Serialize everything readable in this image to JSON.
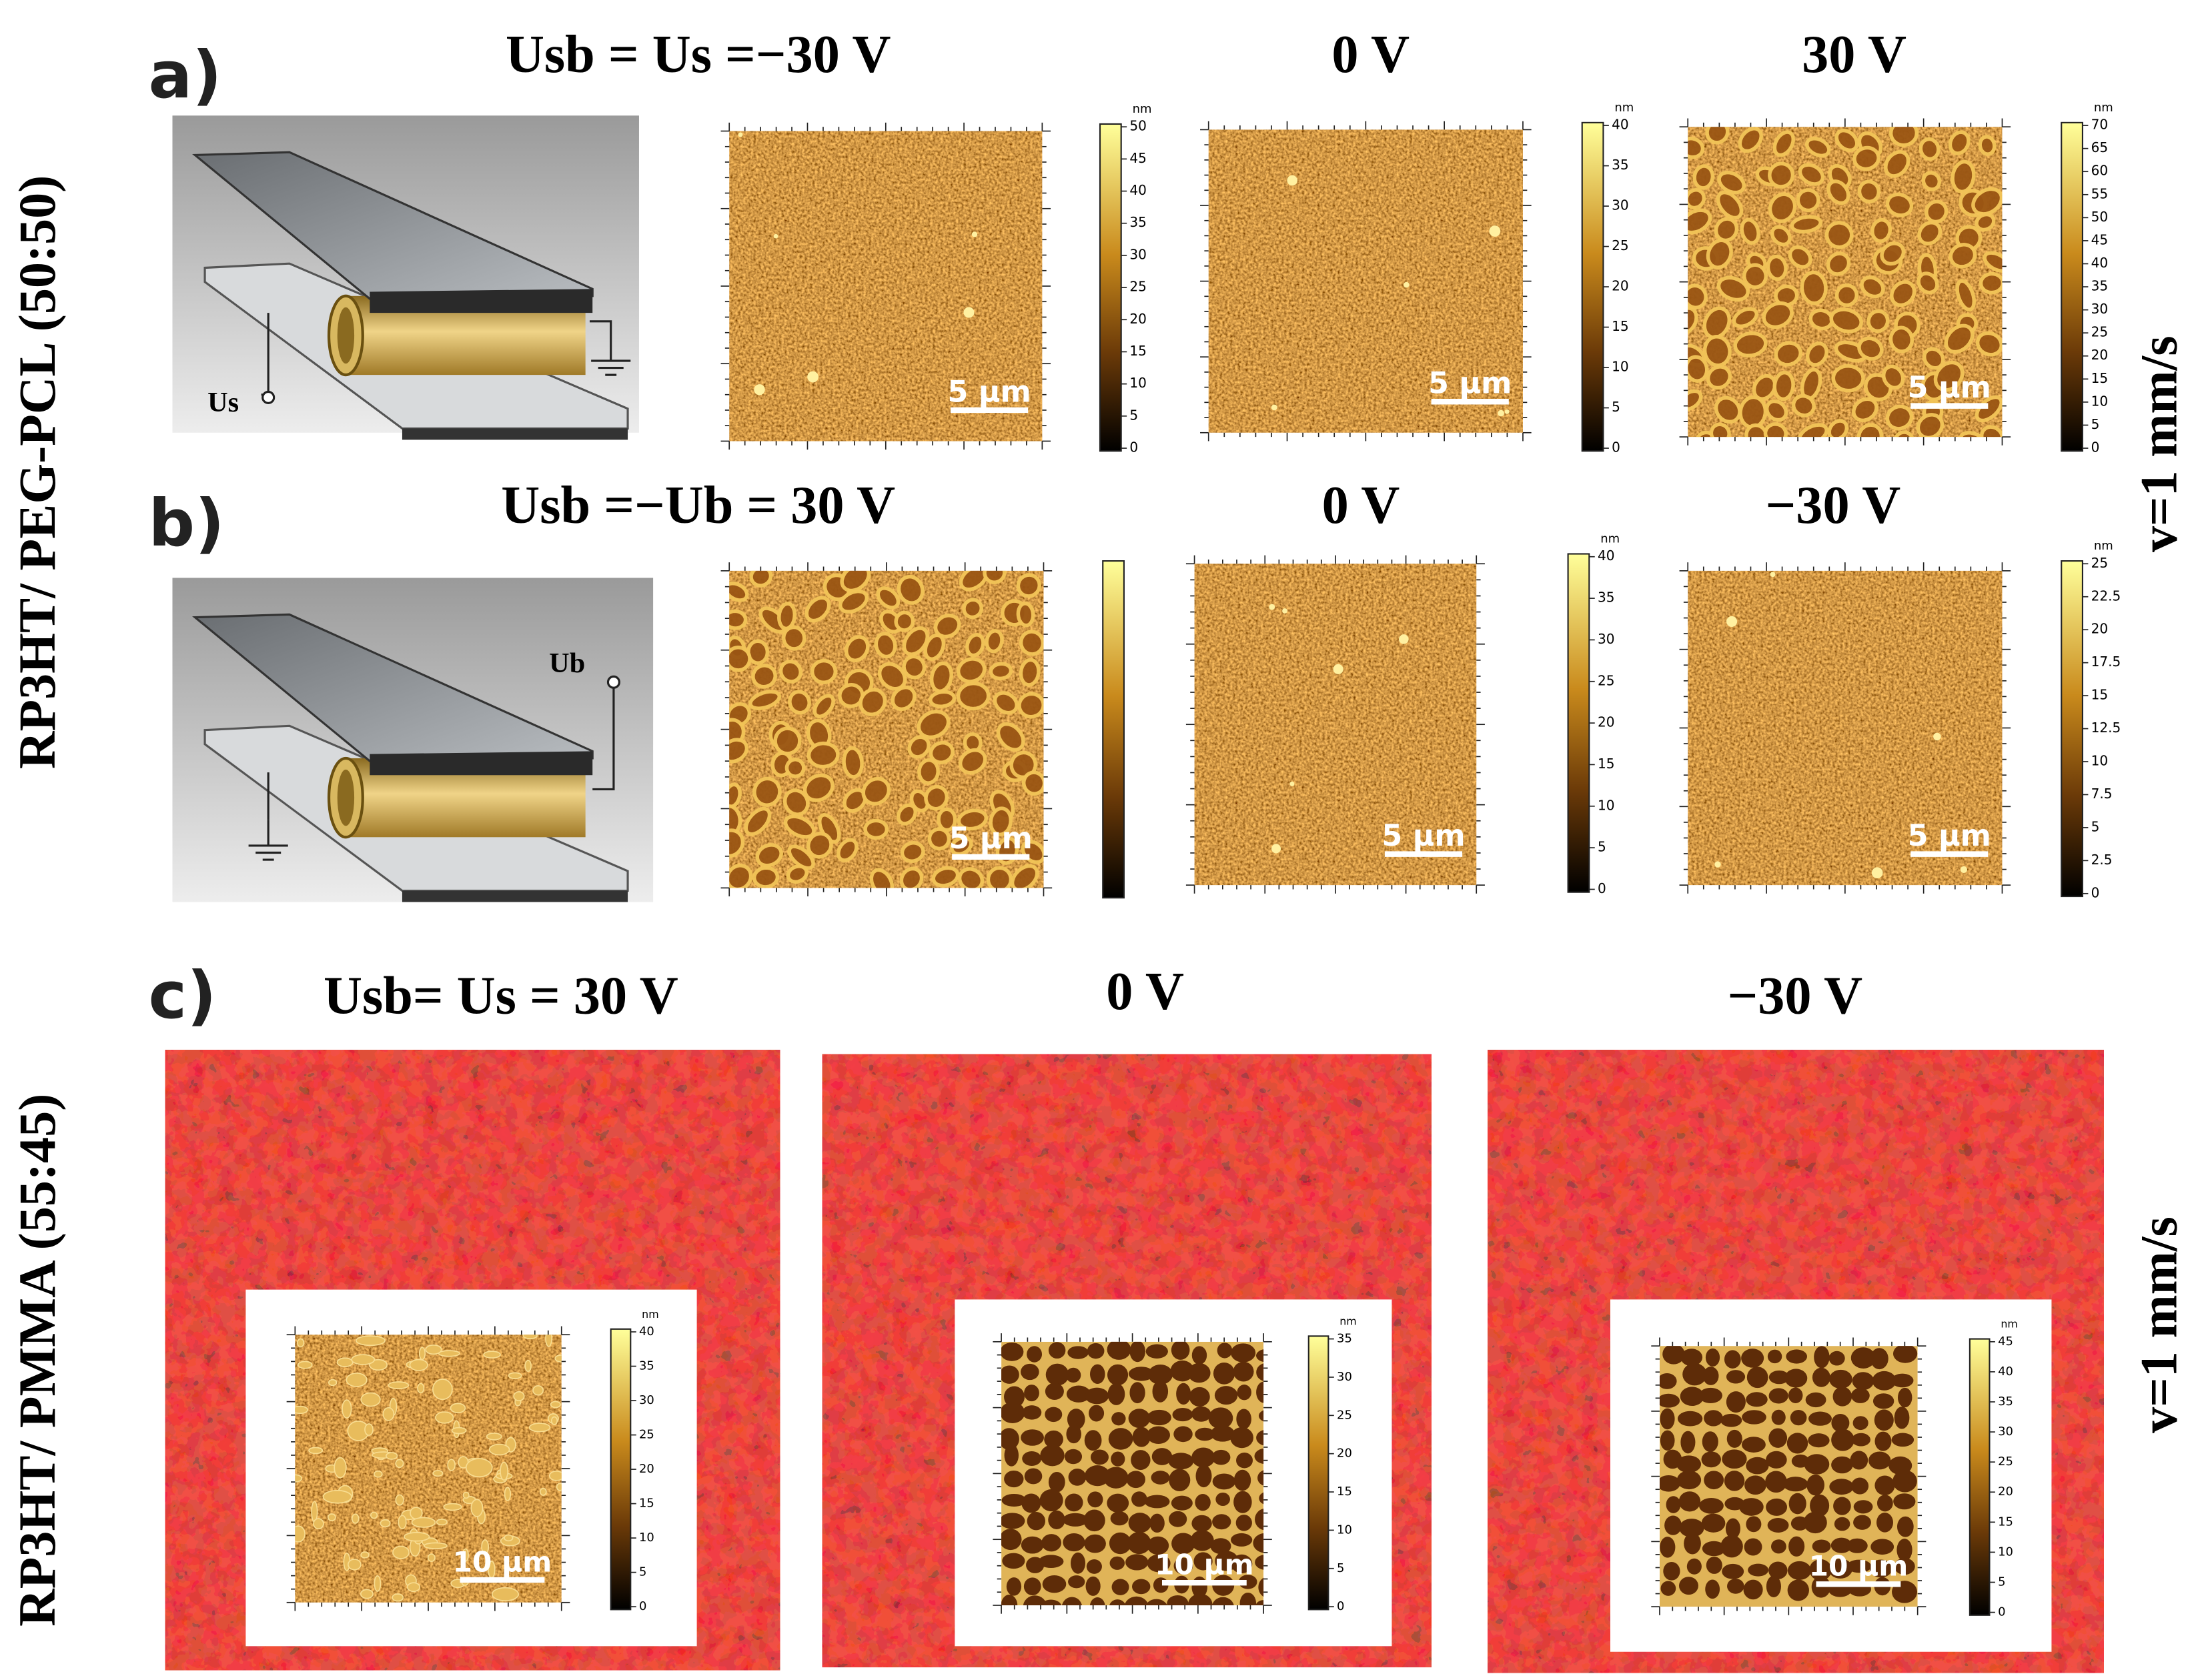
{
  "side_labels": [
    "RP3HT/ PEG-PCL (50:50)",
    "RP3HT/ PMMA (55:45)"
  ],
  "speed_labels": [
    "v=1 mm/s",
    "v=1 mm/s"
  ],
  "panels": [
    {
      "label": "a)",
      "schematic_terminal": "Us",
      "columns": [
        {
          "voltage": "Usb = Us =−30 V",
          "scale_bar": "5 μm",
          "unit": "nm",
          "colorbar_ticks": [
            0,
            5,
            10,
            15,
            20,
            25,
            30,
            35,
            40,
            45,
            50
          ]
        },
        {
          "voltage": "0 V",
          "scale_bar": "5 μm",
          "unit": "nm",
          "colorbar_ticks": [
            0,
            5,
            10,
            15,
            20,
            25,
            30,
            35,
            40
          ]
        },
        {
          "voltage": "30 V",
          "scale_bar": "5 μm",
          "unit": "nm",
          "colorbar_ticks": [
            0,
            5,
            10,
            15,
            20,
            25,
            30,
            35,
            40,
            45,
            50,
            55,
            60,
            65,
            70
          ]
        }
      ]
    },
    {
      "label": "b)",
      "schematic_terminal": "Ub",
      "columns": [
        {
          "voltage": "Usb =−Ub = 30 V",
          "scale_bar": "5 μm"
        },
        {
          "voltage": "0 V",
          "scale_bar": "5 μm",
          "unit": "nm",
          "colorbar_ticks": [
            0,
            5,
            10,
            15,
            20,
            25,
            30,
            35,
            40
          ]
        },
        {
          "voltage": "−30 V",
          "scale_bar": "5 μm",
          "unit": "nm",
          "colorbar_ticks": [
            0,
            2.5,
            5,
            7.5,
            10,
            12.5,
            15,
            17.5,
            20,
            22.5,
            25
          ]
        }
      ]
    },
    {
      "label": "c)",
      "columns": [
        {
          "voltage": "Usb= Us = 30 V",
          "scale_bar": "10 μm",
          "unit": "nm",
          "colorbar_ticks": [
            0,
            5,
            10,
            15,
            20,
            25,
            30,
            35,
            40
          ]
        },
        {
          "voltage": "0 V",
          "scale_bar": "10 μm",
          "unit": "nm",
          "colorbar_ticks": [
            0,
            5,
            10,
            15,
            20,
            25,
            30,
            35
          ]
        },
        {
          "voltage": "−30 V",
          "scale_bar": "10 μm",
          "unit": "nm",
          "colorbar_ticks": [
            0,
            5,
            10,
            15,
            20,
            25,
            30,
            35,
            40,
            45
          ]
        }
      ]
    }
  ]
}
